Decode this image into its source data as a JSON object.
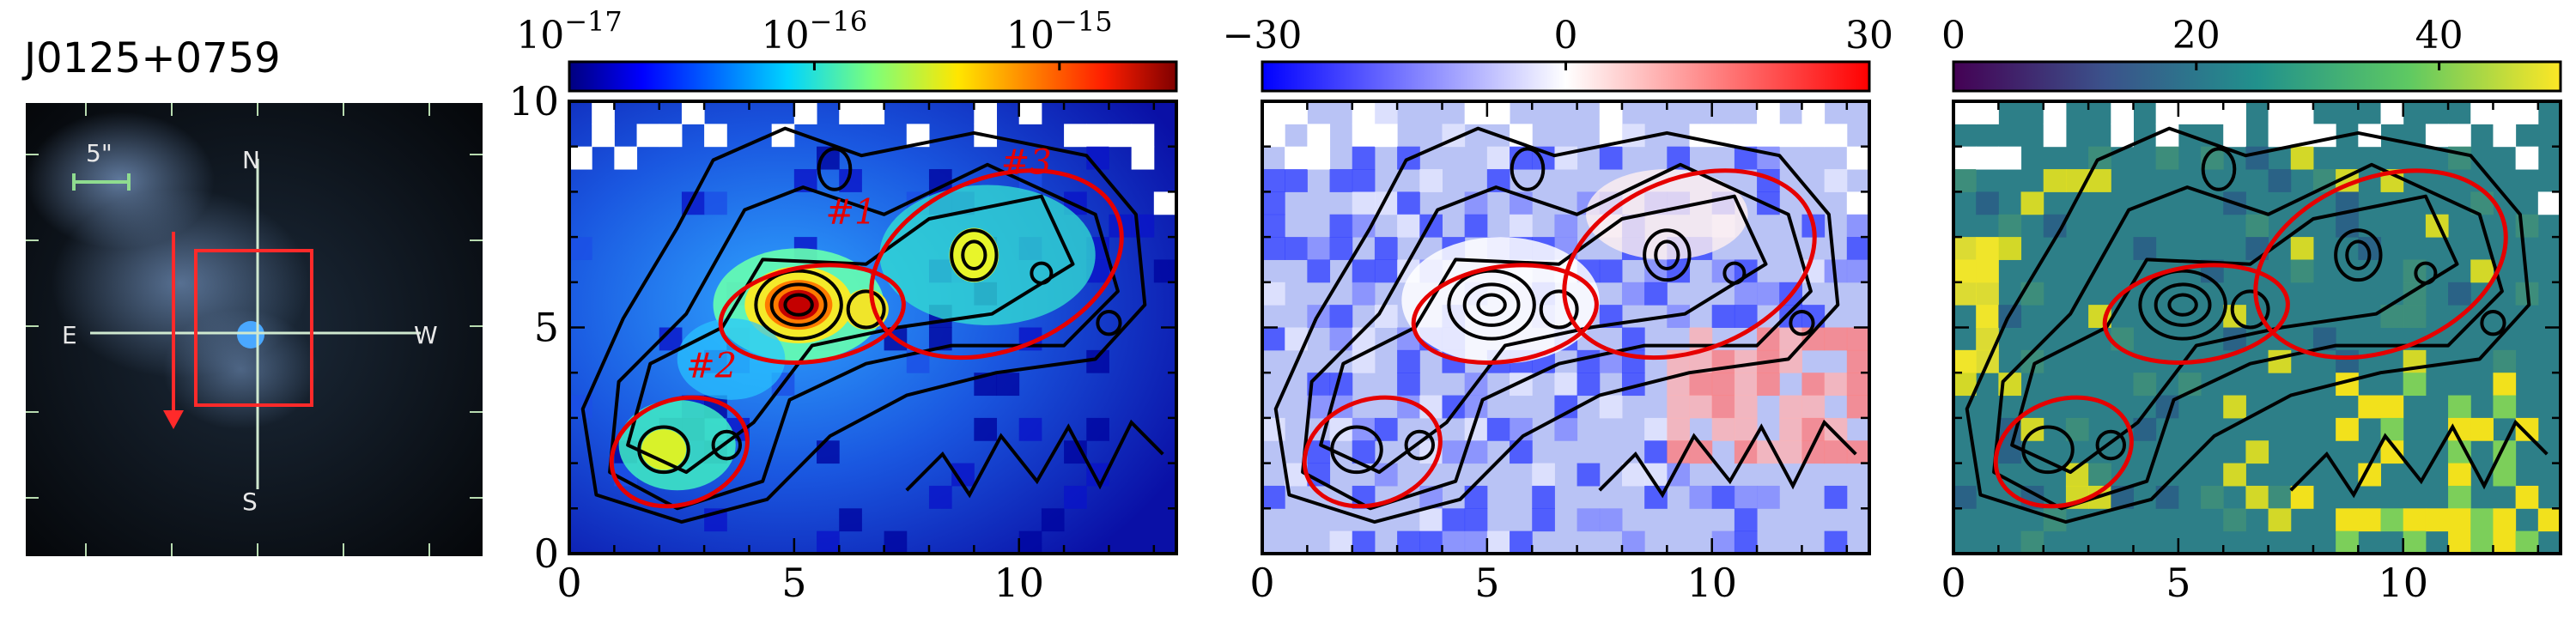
{
  "figure": {
    "object_name": "J0125+0759"
  },
  "sdss_image": {
    "scale_label": "5\"",
    "compass": {
      "north": "N",
      "south": "S",
      "east": "E",
      "west": "W"
    }
  },
  "panels": [
    {
      "id": "flux",
      "colorbar": {
        "ticks": [
          {
            "base": "10",
            "exp": "−17"
          },
          {
            "base": "10",
            "exp": "−16"
          },
          {
            "base": "10",
            "exp": "−15"
          }
        ],
        "colormap": "jet"
      },
      "region_labels": [
        "#1",
        "#2",
        "#3"
      ]
    },
    {
      "id": "velocity",
      "colorbar": {
        "ticks": [
          {
            "text": "−30"
          },
          {
            "text": "0"
          },
          {
            "text": "30"
          }
        ],
        "colormap": "bwr"
      }
    },
    {
      "id": "dispersion",
      "colorbar": {
        "ticks": [
          {
            "text": "0"
          },
          {
            "text": "20"
          },
          {
            "text": "40"
          }
        ],
        "colormap": "viridis"
      }
    }
  ],
  "chart_data": [
    {
      "type": "heatmap",
      "title": "",
      "colorbar_scale": "log",
      "colorbar_range": [
        1e-17,
        3e-15
      ],
      "colorbar_tick_labels": [
        "10^-17",
        "10^-16",
        "10^-15"
      ],
      "xlim": [
        0,
        13.5
      ],
      "ylim": [
        0,
        10
      ],
      "x_tick_labels": [
        "0",
        "5",
        "10"
      ],
      "y_tick_labels": [
        "0",
        "5",
        "10"
      ],
      "overlays": [
        "black flux contours",
        "red elliptical apertures #1, #2, #3"
      ]
    },
    {
      "type": "heatmap",
      "title": "",
      "colorbar_range": [
        -30,
        30
      ],
      "colorbar_tick_labels": [
        "−30",
        "0",
        "30"
      ],
      "xlim": [
        0,
        13.5
      ],
      "ylim": [
        0,
        10
      ],
      "x_tick_labels": [
        "0",
        "5",
        "10"
      ]
    },
    {
      "type": "heatmap",
      "title": "",
      "colorbar_range": [
        0,
        50
      ],
      "colorbar_tick_labels": [
        "0",
        "20",
        "40"
      ],
      "xlim": [
        0,
        13.5
      ],
      "ylim": [
        0,
        10
      ],
      "x_tick_labels": [
        "0",
        "5",
        "10"
      ]
    }
  ],
  "axis_labels": {
    "x_ticks": [
      "0",
      "5",
      "10"
    ],
    "y_ticks": [
      "0",
      "5",
      "10"
    ]
  }
}
